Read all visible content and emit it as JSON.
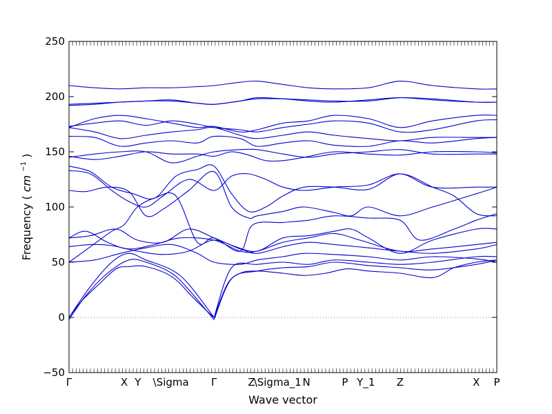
{
  "chart_data": {
    "type": "line",
    "title": "",
    "xlabel": "Wave vector",
    "ylabel": "Frequency",
    "ylabel_unit_base": "cm",
    "ylabel_unit_exp": "−1",
    "ylim": [
      -50,
      250
    ],
    "yticks": [
      -50,
      0,
      50,
      100,
      150,
      200,
      250
    ],
    "xlim": [
      0,
      1
    ],
    "grid": false,
    "legend": "none",
    "line_color": "#0000cc",
    "zero_line_color": "#555555",
    "high_symmetry_points": [
      {
        "label": "Γ",
        "x": 0.0
      },
      {
        "label": "X",
        "x": 0.129
      },
      {
        "label": "Y",
        "x": 0.161
      },
      {
        "label": "\\Sigma",
        "x": 0.193
      },
      {
        "label": "Γ",
        "x": 0.339
      },
      {
        "label": "Z",
        "x": 0.435
      },
      {
        "label": "\\Sigma_1",
        "x": 0.435
      },
      {
        "label": "N",
        "x": 0.555
      },
      {
        "label": "P",
        "x": 0.645
      },
      {
        "label": "Y_1",
        "x": 0.694
      },
      {
        "label": "Z",
        "x": 0.774
      },
      {
        "label": "X",
        "x": 0.952
      },
      {
        "label": "P",
        "x": 1.0
      }
    ],
    "series": [
      {
        "x": [
          0,
          0.03,
          0.07,
          0.11,
          0.14,
          0.18,
          0.24,
          0.29,
          0.33,
          0.339
        ],
        "y": [
          0,
          15,
          30,
          44,
          46,
          46,
          37,
          18,
          3,
          0
        ]
      },
      {
        "x": [
          0.339,
          0.37,
          0.4,
          0.44,
          0.5,
          0.55,
          0.6,
          0.65,
          0.7,
          0.774,
          0.85,
          0.9,
          0.952,
          1.0
        ],
        "y": [
          0,
          30,
          40,
          42,
          40,
          38,
          40,
          44,
          42,
          40,
          36,
          45,
          50,
          52
        ]
      },
      {
        "x": [
          0,
          0.04,
          0.09,
          0.14,
          0.18,
          0.24,
          0.28,
          0.339
        ],
        "y": [
          -2,
          20,
          40,
          52,
          50,
          40,
          25,
          -2
        ]
      },
      {
        "x": [
          0.339,
          0.38,
          0.44,
          0.5,
          0.56,
          0.62,
          0.7,
          0.774,
          0.85,
          0.952,
          1.0
        ],
        "y": [
          -2,
          35,
          42,
          45,
          46,
          50,
          47,
          45,
          43,
          48,
          52
        ]
      },
      {
        "x": [
          0,
          0.05,
          0.1,
          0.14,
          0.18,
          0.24,
          0.28,
          0.339
        ],
        "y": [
          0,
          28,
          50,
          58,
          52,
          43,
          30,
          0
        ]
      },
      {
        "x": [
          0.339,
          0.38,
          0.44,
          0.5,
          0.56,
          0.62,
          0.7,
          0.774,
          0.85,
          0.952,
          1.0
        ],
        "y": [
          0,
          45,
          48,
          50,
          48,
          52,
          50,
          48,
          50,
          55,
          55
        ]
      },
      {
        "x": [
          0,
          0.06,
          0.12,
          0.18,
          0.24,
          0.3,
          0.339,
          0.4,
          0.44,
          0.5,
          0.55,
          0.62,
          0.7,
          0.774,
          0.85,
          0.952,
          1.0
        ],
        "y": [
          50,
          52,
          58,
          63,
          66,
          58,
          50,
          48,
          52,
          55,
          58,
          57,
          55,
          52,
          55,
          53,
          50
        ]
      },
      {
        "x": [
          0,
          0.05,
          0.1,
          0.16,
          0.22,
          0.28,
          0.339,
          0.4,
          0.44,
          0.5,
          0.56,
          0.62,
          0.7,
          0.774,
          0.85,
          0.952,
          1.0
        ],
        "y": [
          64,
          66,
          65,
          60,
          57,
          60,
          70,
          62,
          58,
          64,
          68,
          66,
          63,
          60,
          58,
          62,
          66
        ]
      },
      {
        "x": [
          0,
          0.04,
          0.09,
          0.14,
          0.2,
          0.26,
          0.339,
          0.4,
          0.44,
          0.5,
          0.56,
          0.62,
          0.68,
          0.774,
          0.85,
          0.952,
          1.0
        ],
        "y": [
          72,
          78,
          68,
          62,
          66,
          72,
          70,
          60,
          60,
          68,
          72,
          76,
          70,
          60,
          62,
          66,
          68
        ]
      },
      {
        "x": [
          0,
          0.05,
          0.11,
          0.16,
          0.22,
          0.28,
          0.339,
          0.39,
          0.44,
          0.5,
          0.56,
          0.62,
          0.66,
          0.7,
          0.774,
          0.85,
          0.952,
          1.0
        ],
        "y": [
          72,
          74,
          80,
          70,
          68,
          80,
          72,
          64,
          60,
          72,
          74,
          78,
          80,
          72,
          58,
          70,
          80,
          80
        ]
      },
      {
        "x": [
          0,
          0.05,
          0.1,
          0.129,
          0.16,
          0.2,
          0.25,
          0.3,
          0.339,
          0.4,
          0.43,
          0.5,
          0.56,
          0.62,
          0.7,
          0.774,
          0.82,
          0.9,
          0.952,
          1.0
        ],
        "y": [
          50,
          64,
          78,
          84,
          100,
          108,
          110,
          68,
          72,
          60,
          84,
          86,
          88,
          92,
          90,
          88,
          70,
          80,
          88,
          94
        ]
      },
      {
        "x": [
          0,
          0.04,
          0.09,
          0.14,
          0.18,
          0.22,
          0.28,
          0.339,
          0.38,
          0.42,
          0.44,
          0.5,
          0.55,
          0.62,
          0.66,
          0.7,
          0.774,
          0.85,
          0.952,
          1.0
        ],
        "y": [
          115,
          114,
          118,
          114,
          92,
          98,
          115,
          132,
          100,
          90,
          92,
          96,
          100,
          95,
          92,
          100,
          92,
          100,
          112,
          118
        ]
      },
      {
        "x": [
          0,
          0.05,
          0.1,
          0.15,
          0.2,
          0.25,
          0.3,
          0.339,
          0.38,
          0.42,
          0.46,
          0.5,
          0.55,
          0.62,
          0.7,
          0.774,
          0.85,
          0.9,
          0.952,
          1.0
        ],
        "y": [
          137,
          132,
          118,
          112,
          108,
          128,
          134,
          137,
          112,
          96,
          100,
          110,
          118,
          118,
          116,
          130,
          118,
          110,
          94,
          92
        ]
      },
      {
        "x": [
          0,
          0.05,
          0.1,
          0.14,
          0.18,
          0.22,
          0.28,
          0.339,
          0.38,
          0.42,
          0.46,
          0.5,
          0.55,
          0.62,
          0.7,
          0.774,
          0.85,
          0.952,
          1.0
        ],
        "y": [
          133,
          130,
          115,
          105,
          100,
          110,
          125,
          115,
          128,
          130,
          125,
          118,
          115,
          118,
          120,
          130,
          118,
          118,
          118
        ]
      },
      {
        "x": [
          0,
          0.06,
          0.12,
          0.18,
          0.24,
          0.3,
          0.339,
          0.38,
          0.42,
          0.46,
          0.5,
          0.55,
          0.62,
          0.7,
          0.774,
          0.85,
          0.952,
          1.0
        ],
        "y": [
          146,
          143,
          146,
          150,
          148,
          148,
          146,
          150,
          147,
          142,
          142,
          145,
          150,
          148,
          147,
          150,
          150,
          149
        ]
      },
      {
        "x": [
          0,
          0.06,
          0.12,
          0.18,
          0.24,
          0.3,
          0.339,
          0.4,
          0.44,
          0.5,
          0.56,
          0.62,
          0.7,
          0.774,
          0.85,
          0.952,
          1.0
        ],
        "y": [
          145,
          148,
          150,
          150,
          140,
          146,
          150,
          152,
          152,
          148,
          145,
          148,
          150,
          152,
          148,
          148,
          148
        ]
      },
      {
        "x": [
          0,
          0.06,
          0.12,
          0.18,
          0.24,
          0.3,
          0.339,
          0.4,
          0.44,
          0.5,
          0.56,
          0.62,
          0.7,
          0.774,
          0.85,
          0.952,
          1.0
        ],
        "y": [
          164,
          163,
          155,
          158,
          160,
          158,
          164,
          162,
          155,
          158,
          160,
          156,
          155,
          160,
          158,
          162,
          163
        ]
      },
      {
        "x": [
          0,
          0.06,
          0.12,
          0.18,
          0.24,
          0.3,
          0.339,
          0.4,
          0.44,
          0.5,
          0.56,
          0.62,
          0.7,
          0.774,
          0.85,
          0.952,
          1.0
        ],
        "y": [
          172,
          168,
          162,
          165,
          168,
          170,
          172,
          165,
          162,
          165,
          168,
          165,
          162,
          160,
          163,
          163,
          163
        ]
      },
      {
        "x": [
          0,
          0.06,
          0.12,
          0.18,
          0.24,
          0.3,
          0.339,
          0.4,
          0.44,
          0.5,
          0.56,
          0.62,
          0.7,
          0.774,
          0.85,
          0.952,
          1.0
        ],
        "y": [
          173,
          176,
          178,
          174,
          178,
          175,
          172,
          170,
          168,
          172,
          175,
          178,
          176,
          168,
          170,
          178,
          179
        ]
      },
      {
        "x": [
          0,
          0.06,
          0.12,
          0.18,
          0.24,
          0.3,
          0.339,
          0.4,
          0.44,
          0.5,
          0.56,
          0.62,
          0.7,
          0.774,
          0.85,
          0.952,
          1.0
        ],
        "y": [
          172,
          180,
          183,
          180,
          176,
          172,
          173,
          168,
          170,
          176,
          178,
          183,
          180,
          172,
          178,
          183,
          183
        ]
      },
      {
        "x": [
          0,
          0.06,
          0.12,
          0.18,
          0.24,
          0.3,
          0.339,
          0.4,
          0.44,
          0.5,
          0.56,
          0.62,
          0.7,
          0.774,
          0.85,
          0.952,
          1.0
        ],
        "y": [
          193,
          194,
          195,
          196,
          196,
          194,
          193,
          196,
          198,
          198,
          197,
          196,
          196,
          199,
          198,
          195,
          195
        ]
      },
      {
        "x": [
          0,
          0.06,
          0.12,
          0.18,
          0.24,
          0.3,
          0.339,
          0.4,
          0.44,
          0.5,
          0.56,
          0.62,
          0.7,
          0.774,
          0.85,
          0.952,
          1.0
        ],
        "y": [
          192,
          193,
          195,
          196,
          197,
          194,
          193,
          196,
          199,
          198,
          196,
          195,
          197,
          199,
          197,
          195,
          195
        ]
      },
      {
        "x": [
          0,
          0.06,
          0.12,
          0.18,
          0.24,
          0.3,
          0.339,
          0.4,
          0.44,
          0.5,
          0.56,
          0.62,
          0.7,
          0.774,
          0.85,
          0.952,
          1.0
        ],
        "y": [
          210,
          208,
          207,
          208,
          208,
          209,
          210,
          213,
          214,
          211,
          208,
          207,
          208,
          214,
          210,
          207,
          207
        ]
      }
    ]
  }
}
